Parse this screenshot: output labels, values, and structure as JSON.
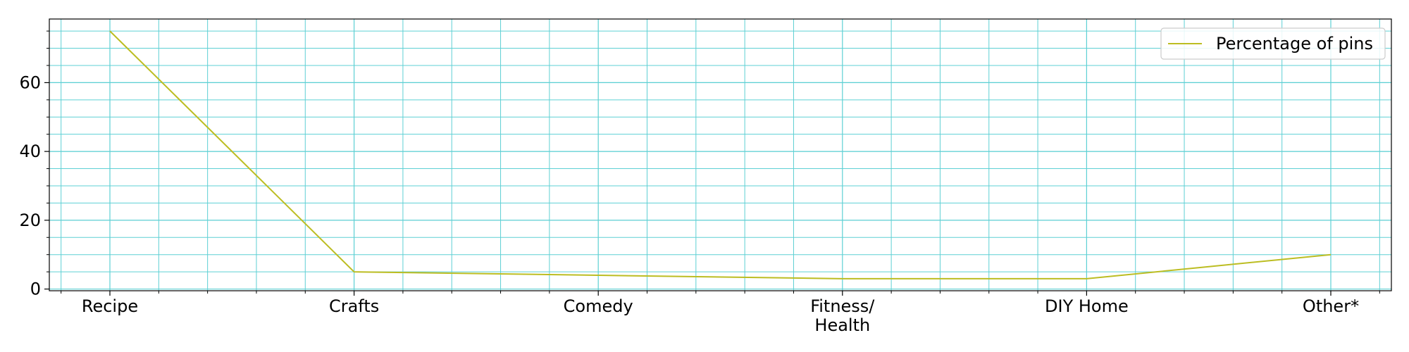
{
  "chart_data": {
    "type": "line",
    "categories": [
      "Recipe",
      "Crafts",
      "Comedy",
      "Fitness/\nHealth",
      "DIY Home",
      "Other*"
    ],
    "series": [
      {
        "name": "Percentage of pins",
        "values": [
          75,
          5,
          4,
          3,
          3,
          10
        ]
      }
    ],
    "title": "",
    "xlabel": "",
    "ylabel": "",
    "ylim": [
      -0.5,
      78.5
    ],
    "yticks": [
      0,
      20,
      40,
      60
    ],
    "grid": true,
    "minor_grid": true,
    "legend_position": "upper right",
    "colors": {
      "line": "#bcbd22",
      "grid": "#5ed0d4",
      "axes": "#000000",
      "background": "#ffffff"
    }
  }
}
